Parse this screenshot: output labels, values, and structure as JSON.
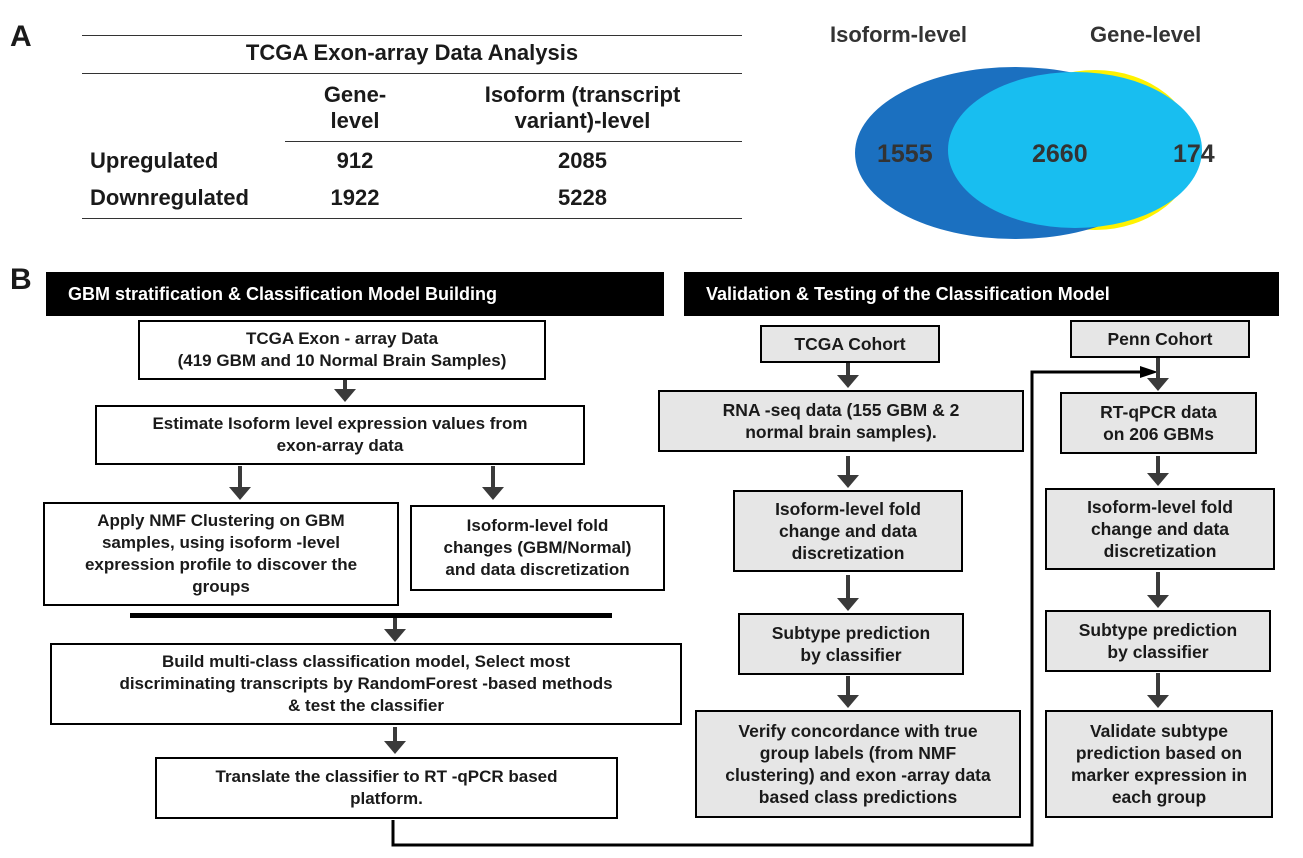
{
  "panelA": {
    "letter": "A",
    "table": {
      "title": "TCGA Exon-array Data Analysis",
      "col1_head": "Gene-\nlevel",
      "col2_head": "Isoform (transcript\nvariant)-level",
      "rows": [
        {
          "label": "Upregulated",
          "gene": "912",
          "isoform": "2085"
        },
        {
          "label": "Downregulated",
          "gene": "1922",
          "isoform": "5228"
        }
      ]
    },
    "venn": {
      "label_left": "Isoform-level",
      "label_right": "Gene-level",
      "left_only": "1555",
      "overlap": "2660",
      "right_only": "174",
      "colors": {
        "isoform": "#1b70c0",
        "overlap": "#18bef0",
        "gene": "#fff200"
      }
    }
  },
  "panelB": {
    "letter": "B",
    "banner_left": "GBM stratification & Classification Model Building",
    "banner_right": "Validation & Testing of the Classification Model",
    "left": {
      "tcga_exon": "TCGA Exon  - array Data\n(419 GBM and 10 Normal Brain Samples)",
      "estimate": "Estimate Isoform level expression values from\nexon-array data",
      "nmf": "Apply NMF Clustering on GBM\nsamples, using isoform -level\nexpression profile to discover the\ngroups",
      "fold": "Isoform-level fold\nchanges (GBM/Normal)\nand data discretization",
      "build": "Build multi-class classification model, Select most\ndiscriminating transcripts  by RandomForest -based methods\n& test the classifier",
      "translate": "Translate the classifier to RT -qPCR  based\nplatform."
    },
    "tcga_cohort": {
      "header": "TCGA Cohort",
      "rnaseq": "RNA -seq data (155 GBM & 2\nnormal brain  samples).",
      "fold": "Isoform-level fold\nchange and data\ndiscretization",
      "predict": "Subtype prediction\nby classifier",
      "verify": "Verify concordance with true\ngroup labels (from NMF\nclustering) and exon -array data\nbased class predictions"
    },
    "penn_cohort": {
      "header": "Penn Cohort",
      "rtqpcr": "RT-qPCR data\non 206 GBMs",
      "fold": "Isoform-level fold\nchange and data\ndiscretization",
      "predict": "Subtype  prediction\nby classifier",
      "validate": "Validate subtype\nprediction based on\nmarker expression in\neach group"
    }
  }
}
